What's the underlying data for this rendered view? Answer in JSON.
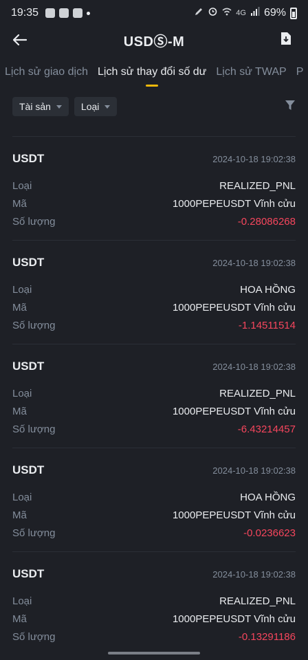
{
  "status_bar": {
    "time": "19:35",
    "network": "4G",
    "battery": "69%"
  },
  "header": {
    "title": "USDⓈ-M"
  },
  "tabs": [
    {
      "label": "Lịch sử giao dịch",
      "active": false
    },
    {
      "label": "Lịch sử thay đổi số dư",
      "active": true
    },
    {
      "label": "Lịch sử TWAP",
      "active": false
    },
    {
      "label": "P",
      "active": false
    }
  ],
  "filters": {
    "asset_label": "Tài sản",
    "type_label": "Loại"
  },
  "field_labels": {
    "type": "Loại",
    "code": "Mã",
    "amount": "Số lượng"
  },
  "entries": [
    {
      "asset": "USDT",
      "time": "2024-10-18 19:02:38",
      "type": "REALIZED_PNL",
      "code": "1000PEPEUSDT Vĩnh cửu",
      "amount": "-0.28086268"
    },
    {
      "asset": "USDT",
      "time": "2024-10-18 19:02:38",
      "type": "HOA HỒNG",
      "code": "1000PEPEUSDT Vĩnh cửu",
      "amount": "-1.14511514"
    },
    {
      "asset": "USDT",
      "time": "2024-10-18 19:02:38",
      "type": "REALIZED_PNL",
      "code": "1000PEPEUSDT Vĩnh cửu",
      "amount": "-6.43214457"
    },
    {
      "asset": "USDT",
      "time": "2024-10-18 19:02:38",
      "type": "HOA HỒNG",
      "code": "1000PEPEUSDT Vĩnh cửu",
      "amount": "-0.0236623"
    },
    {
      "asset": "USDT",
      "time": "2024-10-18 19:02:38",
      "type": "REALIZED_PNL",
      "code": "1000PEPEUSDT Vĩnh cửu",
      "amount": "-0.13291186"
    }
  ],
  "colors": {
    "background": "#1e2026",
    "accent": "#f0b90b",
    "negative": "#f6465d",
    "muted": "#848e9c"
  },
  "icons": {
    "back": "arrow-left-icon",
    "export": "file-download-icon",
    "filter": "funnel-icon"
  }
}
